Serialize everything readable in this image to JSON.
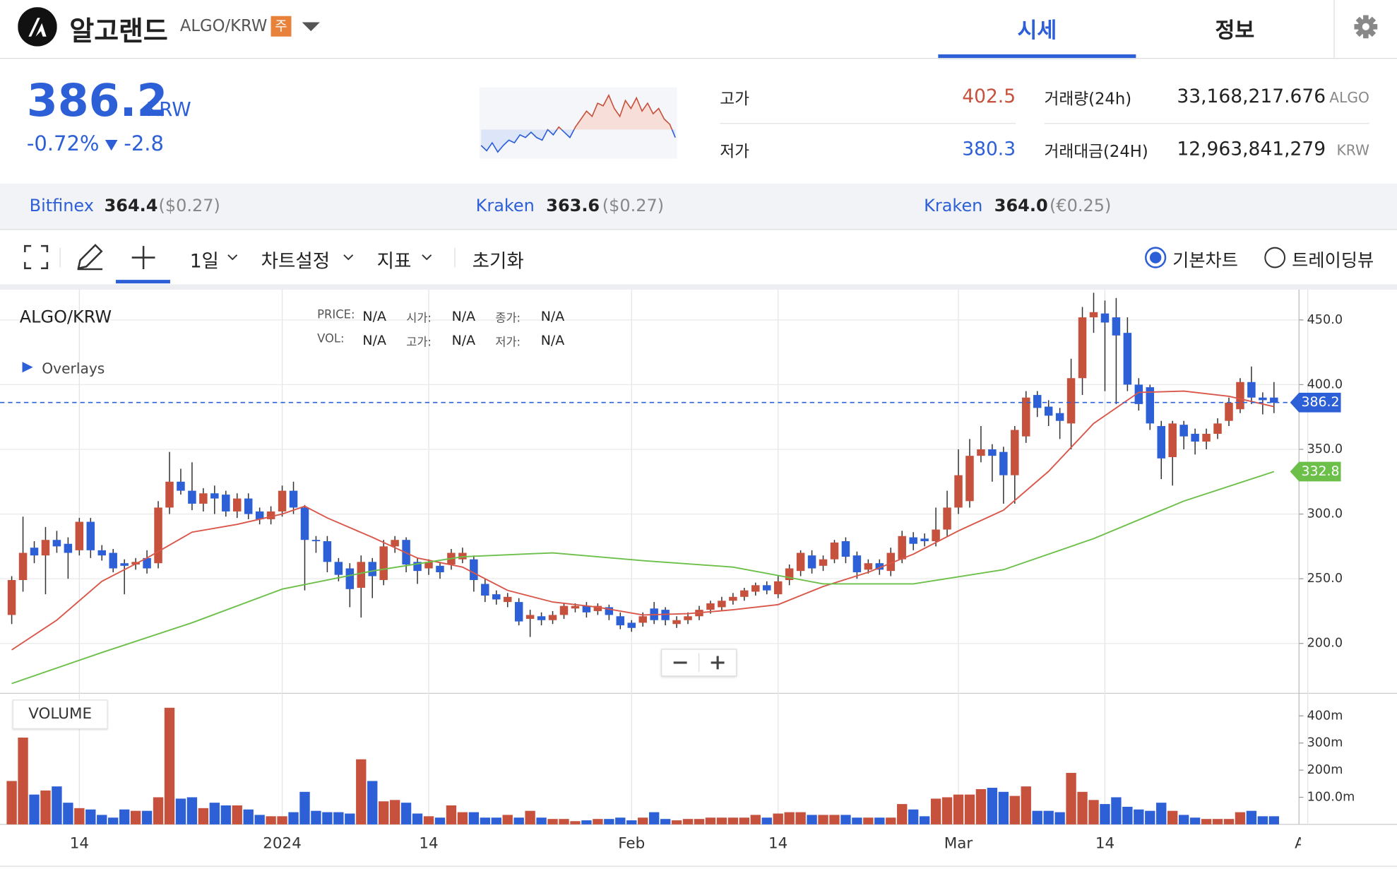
{
  "header": {
    "name": "알고랜드",
    "pair": "ALGO/KRW",
    "badge": "주",
    "tabs": [
      "시세",
      "정보"
    ]
  },
  "price": {
    "value": "386.2",
    "unit": "KRW",
    "change_pct": "-0.72%",
    "change": "-2.8"
  },
  "sparkline": {
    "prev_close": 389,
    "ylim": [
      378,
      405
    ],
    "values": [
      383,
      381,
      384,
      380.5,
      383,
      385,
      384,
      387,
      386,
      388,
      386,
      385,
      389,
      387,
      390,
      388,
      386,
      390,
      393,
      396,
      394,
      399,
      398,
      402,
      397,
      394,
      400,
      397,
      401,
      396,
      399,
      395,
      397,
      393,
      391,
      386
    ]
  },
  "stats": [
    {
      "label": "고가",
      "value": "402.5"
    },
    {
      "label": "저가",
      "value": "380.3"
    },
    {
      "label": "거래량(24h)",
      "value": "33,168,217.676",
      "unit": "ALGO"
    },
    {
      "label": "거래대금(24H)",
      "value": "12,963,841,279",
      "unit": "KRW"
    }
  ],
  "exchanges": [
    {
      "name": "Bitfinex",
      "price": "364.4",
      "quote": "($0.27)"
    },
    {
      "name": "Kraken",
      "price": "363.6",
      "quote": "($0.27)"
    },
    {
      "name": "Kraken",
      "price": "364.0",
      "quote": "(€0.25)"
    }
  ],
  "toolbar": {
    "interval": "1일",
    "menus": [
      "차트설정",
      "지표"
    ],
    "reset": "초기화",
    "modes": [
      "기본차트",
      "트레이딩뷰"
    ]
  },
  "chart_legend": {
    "symbol": "ALGO/KRW",
    "fields": [
      [
        "PRICE:",
        "N/A"
      ],
      [
        "시가:",
        "N/A"
      ],
      [
        "종가:",
        "N/A"
      ],
      [
        "VOL:",
        "N/A"
      ],
      [
        "고가:",
        "N/A"
      ],
      [
        "저가:",
        "N/A"
      ]
    ],
    "overlays": "Overlays",
    "volume": "VOLUME"
  },
  "chart_data": {
    "type": "candlestick",
    "up_color": "#c6523d",
    "down_color": "#2d5fd6",
    "xlim": [
      -1.04,
      114.22
    ],
    "xticks": [
      {
        "value": 6,
        "label": "14"
      },
      {
        "value": 24,
        "label": "2024"
      },
      {
        "value": 37,
        "label": "14"
      },
      {
        "value": 55,
        "label": "Feb"
      },
      {
        "value": 68,
        "label": "14"
      },
      {
        "value": 84,
        "label": "Mar"
      },
      {
        "value": 97,
        "label": "14"
      },
      {
        "value": 115,
        "label": "Apr"
      }
    ],
    "ylim": [
      161.4,
      473.4
    ],
    "yticks": [
      {
        "value": 200,
        "label": "200.0"
      },
      {
        "value": 250,
        "label": "250.0"
      },
      {
        "value": 300,
        "label": "300.0"
      },
      {
        "value": 350,
        "label": "350.0"
      },
      {
        "value": 400,
        "label": "400.0"
      },
      {
        "value": 450,
        "label": "450.0"
      }
    ],
    "vlim": [
      0,
      460
    ],
    "vticks": [
      {
        "value": 100,
        "label": "100.0m"
      },
      {
        "value": 200,
        "label": "200m"
      },
      {
        "value": 300,
        "label": "300m"
      },
      {
        "value": 400,
        "label": "400m"
      }
    ],
    "grid": true,
    "current_price": 386.2,
    "candles": [
      [
        222,
        252,
        215,
        249
      ],
      [
        249,
        298,
        240,
        270
      ],
      [
        274,
        279,
        262,
        268
      ],
      [
        268,
        290,
        238,
        280
      ],
      [
        280,
        287,
        270,
        275
      ],
      [
        277,
        282,
        250,
        270
      ],
      [
        272,
        297,
        268,
        294
      ],
      [
        294,
        297,
        266,
        272
      ],
      [
        272,
        276,
        264,
        268
      ],
      [
        270,
        273,
        255,
        258
      ],
      [
        262,
        265,
        238,
        260
      ],
      [
        261,
        266,
        257,
        263
      ],
      [
        266,
        272,
        254,
        258
      ],
      [
        262,
        310,
        258,
        305
      ],
      [
        305,
        348,
        300,
        325
      ],
      [
        325,
        335,
        315,
        318
      ],
      [
        318,
        340,
        303,
        308
      ],
      [
        308,
        320,
        302,
        316
      ],
      [
        316,
        322,
        300,
        312
      ],
      [
        315,
        318,
        298,
        302
      ],
      [
        302,
        316,
        297,
        312
      ],
      [
        312,
        316,
        296,
        300
      ],
      [
        302,
        305,
        292,
        296
      ],
      [
        296,
        306,
        292,
        302
      ],
      [
        302,
        322,
        298,
        318
      ],
      [
        318,
        325,
        300,
        305
      ],
      [
        305,
        307,
        241,
        280
      ],
      [
        280,
        283,
        270,
        279
      ],
      [
        279,
        283,
        255,
        263
      ],
      [
        263,
        266,
        248,
        253
      ],
      [
        258,
        262,
        228,
        242
      ],
      [
        243,
        268,
        220,
        263
      ],
      [
        263,
        266,
        235,
        252
      ],
      [
        249,
        280,
        245,
        275
      ],
      [
        275,
        283,
        270,
        280
      ],
      [
        280,
        282,
        255,
        261
      ],
      [
        263,
        266,
        246,
        256
      ],
      [
        258,
        265,
        253,
        263
      ],
      [
        260,
        263,
        250,
        255
      ],
      [
        261,
        273,
        257,
        270
      ],
      [
        265,
        274,
        262,
        270
      ],
      [
        265,
        268,
        240,
        249
      ],
      [
        246,
        250,
        232,
        237
      ],
      [
        238,
        241,
        230,
        234
      ],
      [
        232,
        239,
        228,
        236
      ],
      [
        232,
        235,
        214,
        217
      ],
      [
        219,
        226,
        205,
        222
      ],
      [
        221,
        224,
        214,
        218
      ],
      [
        218,
        225,
        215,
        222
      ],
      [
        222,
        231,
        219,
        229
      ],
      [
        227,
        231,
        224,
        229
      ],
      [
        229,
        232,
        220,
        224
      ],
      [
        225,
        231,
        222,
        229
      ],
      [
        228,
        230,
        218,
        222
      ],
      [
        221,
        224,
        211,
        214
      ],
      [
        216,
        218,
        209,
        212
      ],
      [
        216,
        224,
        213,
        221
      ],
      [
        227,
        232,
        215,
        218
      ],
      [
        226,
        228,
        214,
        218
      ],
      [
        215,
        221,
        212,
        218
      ],
      [
        218,
        224,
        215,
        221
      ],
      [
        221,
        229,
        218,
        226
      ],
      [
        226,
        233,
        223,
        231
      ],
      [
        228,
        236,
        225,
        233
      ],
      [
        233,
        239,
        230,
        236
      ],
      [
        236,
        243,
        233,
        241
      ],
      [
        240,
        247,
        237,
        245
      ],
      [
        245,
        248,
        238,
        241
      ],
      [
        238,
        252,
        235,
        248
      ],
      [
        249,
        261,
        245,
        258
      ],
      [
        256,
        272,
        252,
        270
      ],
      [
        268,
        272,
        254,
        258
      ],
      [
        260,
        268,
        256,
        265
      ],
      [
        265,
        280,
        262,
        278
      ],
      [
        279,
        282,
        262,
        267
      ],
      [
        268,
        271,
        250,
        255
      ],
      [
        257,
        265,
        254,
        262
      ],
      [
        262,
        265,
        253,
        257
      ],
      [
        256,
        274,
        252,
        270
      ],
      [
        265,
        287,
        262,
        283
      ],
      [
        282,
        286,
        272,
        277
      ],
      [
        281,
        285,
        275,
        279
      ],
      [
        279,
        305,
        275,
        288
      ],
      [
        288,
        318,
        283,
        305
      ],
      [
        305,
        350,
        300,
        330
      ],
      [
        310,
        358,
        305,
        345
      ],
      [
        345,
        368,
        340,
        350
      ],
      [
        350,
        354,
        325,
        345
      ],
      [
        348,
        352,
        308,
        330
      ],
      [
        330,
        368,
        308,
        365
      ],
      [
        360,
        395,
        355,
        390
      ],
      [
        392,
        395,
        375,
        382
      ],
      [
        383,
        388,
        368,
        376
      ],
      [
        378,
        382,
        358,
        372
      ],
      [
        370,
        420,
        350,
        405
      ],
      [
        405,
        460,
        392,
        452
      ],
      [
        452,
        471,
        440,
        456
      ],
      [
        455,
        465,
        395,
        448
      ],
      [
        452,
        467,
        385,
        438
      ],
      [
        440,
        452,
        395,
        400
      ],
      [
        400,
        405,
        380,
        385
      ],
      [
        398,
        400,
        365,
        370
      ],
      [
        368,
        372,
        327,
        343
      ],
      [
        344,
        372,
        322,
        370
      ],
      [
        369,
        372,
        350,
        360
      ],
      [
        362,
        366,
        346,
        356
      ],
      [
        356,
        366,
        350,
        362
      ],
      [
        362,
        374,
        358,
        370
      ],
      [
        372,
        390,
        368,
        386
      ],
      [
        381,
        405,
        378,
        402
      ],
      [
        402,
        414,
        385,
        390
      ],
      [
        390,
        394,
        377,
        388
      ],
      [
        390,
        402,
        378,
        386
      ]
    ],
    "volume": [
      160,
      320,
      110,
      125,
      140,
      80,
      60,
      55,
      35,
      25,
      55,
      50,
      50,
      100,
      430,
      95,
      100,
      60,
      80,
      70,
      70,
      55,
      35,
      30,
      30,
      45,
      120,
      50,
      45,
      45,
      40,
      240,
      160,
      85,
      90,
      80,
      40,
      30,
      25,
      70,
      45,
      45,
      25,
      25,
      35,
      25,
      50,
      25,
      20,
      20,
      12,
      15,
      20,
      20,
      25,
      15,
      25,
      45,
      20,
      15,
      20,
      20,
      25,
      25,
      25,
      25,
      35,
      25,
      40,
      45,
      45,
      35,
      35,
      35,
      35,
      25,
      25,
      25,
      25,
      75,
      55,
      30,
      95,
      100,
      110,
      110,
      130,
      135,
      120,
      105,
      140,
      50,
      50,
      45,
      190,
      120,
      90,
      75,
      100,
      65,
      55,
      50,
      80,
      50,
      35,
      25,
      20,
      20,
      20,
      45,
      50,
      30,
      30
    ],
    "lines": [
      {
        "color": "#d9574a",
        "x": [
          0,
          4,
          8,
          12,
          16,
          20,
          24,
          26,
          28,
          32,
          36,
          40,
          44,
          48,
          52,
          56,
          60,
          64,
          68,
          72,
          76,
          80,
          84,
          88,
          92,
          96,
          100,
          104,
          108,
          112
        ],
        "values": [
          195,
          218,
          248,
          266,
          286,
          292,
          300,
          306,
          297,
          282,
          266,
          259,
          241,
          232,
          228,
          222,
          223,
          226,
          230,
          244,
          255,
          269,
          287,
          303,
          333,
          370,
          394,
          395,
          391,
          383
        ]
      },
      {
        "color": "#6cc04a",
        "x": [
          0,
          8,
          16,
          24,
          32,
          40,
          48,
          56,
          64,
          72,
          80,
          88,
          96,
          104,
          112
        ],
        "values": [
          169,
          193,
          216,
          242,
          256,
          267,
          270,
          264,
          259,
          246,
          246,
          257,
          281,
          310,
          332.8
        ]
      }
    ]
  }
}
